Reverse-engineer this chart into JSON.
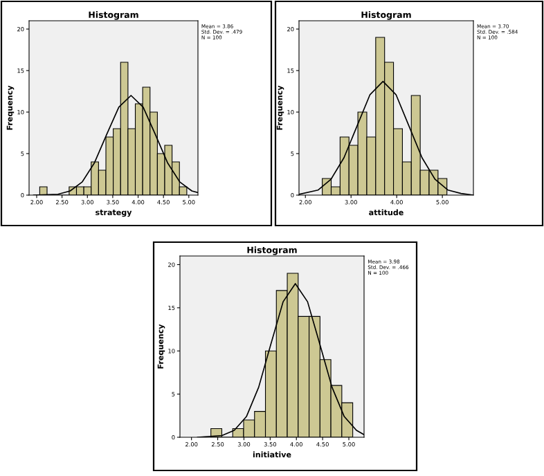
{
  "chart_data": [
    {
      "type": "histogram",
      "title": "Histogram",
      "xlabel": "strategy",
      "ylabel": "Frequency",
      "color": "#cdc893",
      "bins": [
        2.06,
        2.205,
        2.35,
        2.495,
        2.64,
        2.785,
        2.93,
        3.075,
        3.22,
        3.365,
        3.51,
        3.655,
        3.8,
        3.945,
        4.09,
        4.235,
        4.38,
        4.525,
        4.67,
        4.815,
        4.96
      ],
      "values": [
        1,
        0,
        0,
        0,
        1,
        1,
        1,
        4,
        3,
        7,
        8,
        16,
        8,
        11,
        13,
        10,
        5,
        6,
        4,
        1
      ],
      "series": [
        {
          "type": "line",
          "color": "#000000",
          "x": [
            1.94,
            2.42,
            2.66,
            2.9,
            3.14,
            3.38,
            3.62,
            3.86,
            4.1,
            4.34,
            4.58,
            4.82,
            5.06,
            5.18
          ],
          "values": [
            0,
            0.1,
            0.5,
            1.6,
            3.9,
            7.3,
            10.6,
            12,
            10.6,
            7.3,
            3.9,
            1.6,
            0.5,
            0.3
          ]
        }
      ],
      "xlim": [
        1.85,
        5.18
      ],
      "ylim": [
        0,
        21
      ],
      "xticks": [
        {
          "value": 2,
          "label": "2.00"
        },
        {
          "value": 2.5,
          "label": "2.50"
        },
        {
          "value": 3,
          "label": "3.00"
        },
        {
          "value": 3.5,
          "label": "3.50"
        },
        {
          "value": 4,
          "label": "4.00"
        },
        {
          "value": 4.5,
          "label": "4.50"
        },
        {
          "value": 5,
          "label": "5.00"
        }
      ],
      "yticks": [
        0,
        5,
        10,
        15,
        20
      ],
      "annotations": [
        "Mean = 3.86\nStd. Dev. = .479\nN = 100"
      ]
    },
    {
      "type": "histogram",
      "title": "Histogram",
      "xlabel": "attitude",
      "ylabel": "Frequency",
      "color": "#cdc893",
      "bins": [
        2.37,
        2.565,
        2.76,
        2.955,
        3.15,
        3.345,
        3.54,
        3.735,
        3.93,
        4.125,
        4.32,
        4.515,
        4.71,
        4.905,
        5.1
      ],
      "values": [
        2,
        1,
        7,
        6,
        10,
        7,
        19,
        16,
        8,
        4,
        12,
        3,
        3,
        2
      ],
      "series": [
        {
          "type": "line",
          "color": "#000000",
          "x": [
            1.86,
            2.275,
            2.56,
            2.845,
            3.13,
            3.415,
            3.7,
            3.985,
            4.27,
            4.555,
            4.84,
            5.125,
            5.41,
            5.68
          ],
          "values": [
            0.1,
            0.6,
            1.9,
            4.5,
            8.3,
            12.1,
            13.7,
            12.1,
            8.3,
            4.5,
            1.9,
            0.6,
            0.2,
            0
          ]
        }
      ],
      "xlim": [
        1.86,
        5.68
      ],
      "ylim": [
        0,
        21
      ],
      "xticks": [
        {
          "value": 2,
          "label": "2.00"
        },
        {
          "value": 3,
          "label": "3.00"
        },
        {
          "value": 4,
          "label": "4.00"
        },
        {
          "value": 5,
          "label": "5.00"
        }
      ],
      "yticks": [
        0,
        5,
        10,
        15,
        20
      ],
      "annotations": [
        "Mean = 3.70\nStd. Dev. = .584\nN = 100"
      ]
    },
    {
      "type": "histogram",
      "title": "Histogram",
      "xlabel": "initiative",
      "ylabel": "Frequency",
      "color": "#cdc893",
      "bins": [
        2.37,
        2.578,
        2.786,
        2.994,
        3.202,
        3.41,
        3.618,
        3.826,
        4.034,
        4.242,
        4.45,
        4.658,
        4.866,
        5.074
      ],
      "values": [
        1,
        0,
        1,
        2,
        3,
        10,
        17,
        19,
        14,
        14,
        9,
        6,
        4
      ],
      "series": [
        {
          "type": "line",
          "color": "#000000",
          "x": [
            2.116,
            2.582,
            2.815,
            3.048,
            3.281,
            3.514,
            3.747,
            3.98,
            4.213,
            4.446,
            4.679,
            4.912,
            5.145,
            5.29
          ],
          "values": [
            0,
            0.2,
            0.8,
            2.4,
            5.8,
            10.8,
            15.7,
            17.8,
            15.7,
            10.8,
            5.8,
            2.4,
            0.8,
            0.3
          ]
        }
      ],
      "xlim": [
        1.78,
        5.29
      ],
      "ylim": [
        0,
        21
      ],
      "xticks": [
        {
          "value": 2,
          "label": "2.00"
        },
        {
          "value": 2.5,
          "label": "2.50"
        },
        {
          "value": 3,
          "label": "3.00"
        },
        {
          "value": 3.5,
          "label": "3.50"
        },
        {
          "value": 4,
          "label": "4.00"
        },
        {
          "value": 4.5,
          "label": "4.50"
        },
        {
          "value": 5,
          "label": "5.00"
        }
      ],
      "yticks": [
        0,
        5,
        10,
        15,
        20
      ],
      "annotations": [
        "Mean = 3.98\nStd. Dev. = .466\nN = 100"
      ]
    }
  ]
}
